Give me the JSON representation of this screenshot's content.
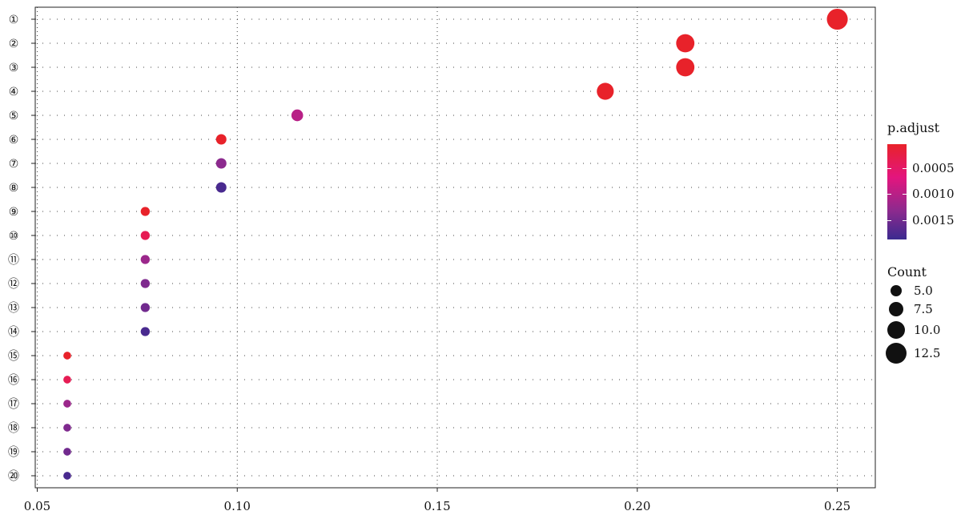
{
  "chart_data": {
    "type": "scatter",
    "x_ticks": [
      "0.05",
      "0.10",
      "0.15",
      "0.20",
      "0.25"
    ],
    "xlim": [
      0.0495,
      0.2595
    ],
    "grid": true,
    "y_labels": [
      "①",
      "②",
      "③",
      "④",
      "⑤",
      "⑥",
      "⑦",
      "⑧",
      "⑨",
      "⑩",
      "⑪",
      "⑫",
      "⑬",
      "⑭",
      "⑮",
      "⑯",
      "⑰",
      "⑱",
      "⑲",
      "⑳"
    ],
    "points": [
      {
        "label": "①",
        "x": 0.25,
        "count": 13,
        "p_adjust": 0.0001
      },
      {
        "label": "②",
        "x": 0.212,
        "count": 11,
        "p_adjust": 0.0001
      },
      {
        "label": "③",
        "x": 0.212,
        "count": 11,
        "p_adjust": 0.0001
      },
      {
        "label": "④",
        "x": 0.192,
        "count": 10,
        "p_adjust": 0.0001
      },
      {
        "label": "⑤",
        "x": 0.115,
        "count": 6,
        "p_adjust": 0.001
      },
      {
        "label": "⑥",
        "x": 0.096,
        "count": 5,
        "p_adjust": 0.0001
      },
      {
        "label": "⑦",
        "x": 0.096,
        "count": 5,
        "p_adjust": 0.0013
      },
      {
        "label": "⑧",
        "x": 0.096,
        "count": 5,
        "p_adjust": 0.0018
      },
      {
        "label": "⑨",
        "x": 0.077,
        "count": 4,
        "p_adjust": 0.0001
      },
      {
        "label": "⑩",
        "x": 0.077,
        "count": 4,
        "p_adjust": 0.0004
      },
      {
        "label": "⑪",
        "x": 0.077,
        "count": 4,
        "p_adjust": 0.0012
      },
      {
        "label": "⑫",
        "x": 0.077,
        "count": 4,
        "p_adjust": 0.0014
      },
      {
        "label": "⑬",
        "x": 0.077,
        "count": 4,
        "p_adjust": 0.0015
      },
      {
        "label": "⑭",
        "x": 0.077,
        "count": 4,
        "p_adjust": 0.0018
      },
      {
        "label": "⑮",
        "x": 0.0575,
        "count": 3,
        "p_adjust": 0.0001
      },
      {
        "label": "⑯",
        "x": 0.0575,
        "count": 3,
        "p_adjust": 0.0004
      },
      {
        "label": "⑰",
        "x": 0.0575,
        "count": 3,
        "p_adjust": 0.0012
      },
      {
        "label": "⑱",
        "x": 0.0575,
        "count": 3,
        "p_adjust": 0.0014
      },
      {
        "label": "⑲",
        "x": 0.0575,
        "count": 3,
        "p_adjust": 0.0015
      },
      {
        "label": "⑳",
        "x": 0.0575,
        "count": 3,
        "p_adjust": 0.0018
      }
    ],
    "color_legend": {
      "title": "p.adjust",
      "ticks": [
        "0.0005",
        "0.0010",
        "0.0015"
      ],
      "colors": [
        "#e8222a",
        "#e3157e",
        "#8c2a8e",
        "#3b2a8f"
      ]
    },
    "size_legend": {
      "title": "Count",
      "entries": [
        "5.0",
        "7.5",
        "10.0",
        "12.5"
      ]
    }
  }
}
